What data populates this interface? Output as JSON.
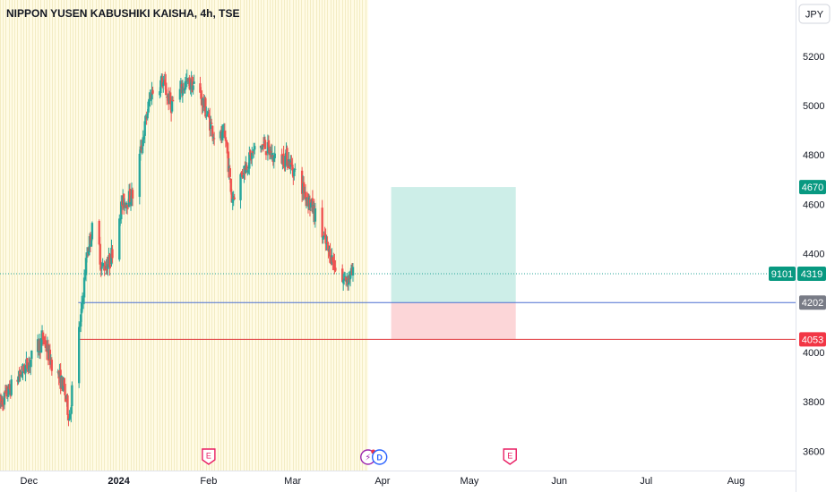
{
  "header": {
    "title": "NIPPON YUSEN KABUSHIKI KAISHA, 4h, TSE"
  },
  "price_axis": {
    "currency_label": "JPY"
  },
  "colors": {
    "up": "#26a69a",
    "down": "#ef5350",
    "session_shade": "#fffbe5",
    "profit_zone": "#cdeee8",
    "loss_zone": "#fcd6d8",
    "entry_line": "#4a6fd1",
    "stop_line": "#e03a3e",
    "current_price_line": "#26a69a",
    "entry_badge": "#787b86",
    "stop_badge": "#f23645",
    "target_badge": "#089981",
    "event_earnings": "#e91e63",
    "event_dividend": "#2962ff",
    "event_split": "#9c27b0"
  },
  "price_labels": {
    "target": "4670",
    "current_symbol": "9101",
    "current_price": "4319",
    "entry": "4202",
    "stop": "4053"
  },
  "events": [
    {
      "icon": "earnings-icon",
      "label": "E",
      "date": "2024-02-01"
    },
    {
      "icon": "split-icon",
      "label": "⚡",
      "date": "2024-03-27"
    },
    {
      "icon": "dividend-icon",
      "label": "D",
      "date": "2024-03-31"
    },
    {
      "icon": "earnings-icon",
      "label": "E",
      "date": "2024-05-15"
    }
  ],
  "chart_data": {
    "type": "candlestick",
    "title": "NIPPON YUSEN KABUSHIKI KAISHA, 4h, TSE",
    "x_axis": {
      "type": "date",
      "range": [
        "2023-11-21",
        "2024-08-16"
      ],
      "ticks": [
        {
          "label": "Dec",
          "date": "2023-12-01",
          "bold": false
        },
        {
          "label": "2024",
          "date": "2024-01-01",
          "bold": true
        },
        {
          "label": "Feb",
          "date": "2024-02-01",
          "bold": false
        },
        {
          "label": "Mar",
          "date": "2024-03-01",
          "bold": false
        },
        {
          "label": "Apr",
          "date": "2024-04-01",
          "bold": false
        },
        {
          "label": "May",
          "date": "2024-05-01",
          "bold": false
        },
        {
          "label": "Jun",
          "date": "2024-06-01",
          "bold": false
        },
        {
          "label": "Jul",
          "date": "2024-07-01",
          "bold": false
        },
        {
          "label": "Aug",
          "date": "2024-08-01",
          "bold": false
        }
      ]
    },
    "y_axis": {
      "range": [
        3560,
        5350
      ],
      "ticks": [
        3600,
        3800,
        4000,
        4200,
        4400,
        4600,
        4800,
        5000,
        5200
      ],
      "unit": "JPY"
    },
    "anchor_points": [
      {
        "date": "2023-11-21",
        "price": 3790
      },
      {
        "date": "2023-11-26",
        "price": 3880
      },
      {
        "date": "2023-12-01",
        "price": 3960
      },
      {
        "date": "2023-12-06",
        "price": 4060
      },
      {
        "date": "2023-12-08",
        "price": 3980
      },
      {
        "date": "2023-12-10",
        "price": 3930
      },
      {
        "date": "2023-12-13",
        "price": 3860
      },
      {
        "date": "2023-12-15",
        "price": 3730
      },
      {
        "date": "2023-12-16",
        "price": 3870
      },
      {
        "date": "2023-12-19",
        "price": 4150
      },
      {
        "date": "2023-12-21",
        "price": 4400
      },
      {
        "date": "2023-12-24",
        "price": 4560
      },
      {
        "date": "2023-12-26",
        "price": 4340
      },
      {
        "date": "2023-12-29",
        "price": 4370
      },
      {
        "date": "2024-01-02",
        "price": 4600
      },
      {
        "date": "2024-01-06",
        "price": 4640
      },
      {
        "date": "2024-01-08",
        "price": 4780
      },
      {
        "date": "2024-01-12",
        "price": 5050
      },
      {
        "date": "2024-01-16",
        "price": 5100
      },
      {
        "date": "2024-01-19",
        "price": 5000
      },
      {
        "date": "2024-01-24",
        "price": 5090
      },
      {
        "date": "2024-01-28",
        "price": 5080
      },
      {
        "date": "2024-02-03",
        "price": 4880
      },
      {
        "date": "2024-02-07",
        "price": 4860
      },
      {
        "date": "2024-02-09",
        "price": 4620
      },
      {
        "date": "2024-02-13",
        "price": 4740
      },
      {
        "date": "2024-02-17",
        "price": 4820
      },
      {
        "date": "2024-02-20",
        "price": 4840
      },
      {
        "date": "2024-02-24",
        "price": 4780
      },
      {
        "date": "2024-02-28",
        "price": 4790
      },
      {
        "date": "2024-03-03",
        "price": 4700
      },
      {
        "date": "2024-03-08",
        "price": 4580
      },
      {
        "date": "2024-03-13",
        "price": 4420
      },
      {
        "date": "2024-03-18",
        "price": 4290
      },
      {
        "date": "2024-03-22",
        "price": 4319
      }
    ],
    "position_tool": {
      "type": "long_position",
      "start_date": "2024-04-04",
      "end_date": "2024-05-17",
      "entry": 4202,
      "target": 4670,
      "stop": 4053
    },
    "last_price": 4319,
    "session_shading_until": "2024-03-27"
  }
}
